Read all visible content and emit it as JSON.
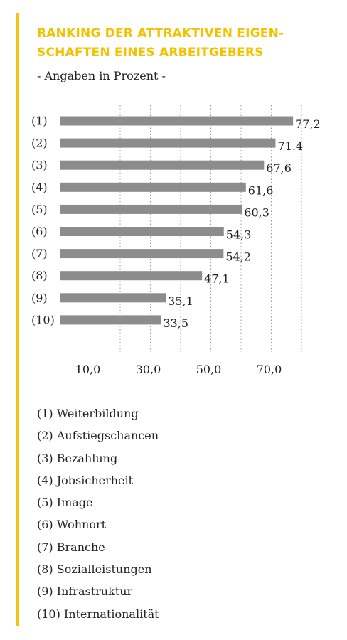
{
  "title_line1": "RANKING DER ATTRAKTIVEN EIGEN-",
  "title_line2": "SCHAFTEN EINES ARBEITGEBERS",
  "subtitle": "- Angaben in Prozent -",
  "colors": {
    "accent": "#f2c200",
    "bar": "#8c8c8c",
    "grid": "#9a9a9a",
    "text": "#222222"
  },
  "chart_data": {
    "type": "bar",
    "orientation": "horizontal",
    "categories": [
      "(1)",
      "(2)",
      "(3)",
      "(4)",
      "(5)",
      "(6)",
      "(7)",
      "(8)",
      "(9)",
      "(10)"
    ],
    "values": [
      77.2,
      71.4,
      67.6,
      61.6,
      60.3,
      54.3,
      54.2,
      47.1,
      35.1,
      33.5
    ],
    "value_labels": [
      "77,2",
      "71.4",
      "67,6",
      "61,6",
      "60,3",
      "54,3",
      "54,2",
      "47,1",
      "35,1",
      "33,5"
    ],
    "x_ticks": [
      10,
      30,
      50,
      70
    ],
    "x_tick_labels": [
      "10,0",
      "30,0",
      "50,0",
      "70,0"
    ],
    "xlim": [
      0,
      80
    ],
    "grid": "vertical dotted lines"
  },
  "legend": [
    "(1) Weiterbildung",
    "(2) Aufstiegschancen",
    "(3) Bezahlung",
    "(4) Jobsicherheit",
    "(5) Image",
    "(6) Wohnort",
    "(7) Branche",
    "(8) Sozialleistungen",
    "(9) Infrastruktur",
    "(10) Internationalität"
  ]
}
